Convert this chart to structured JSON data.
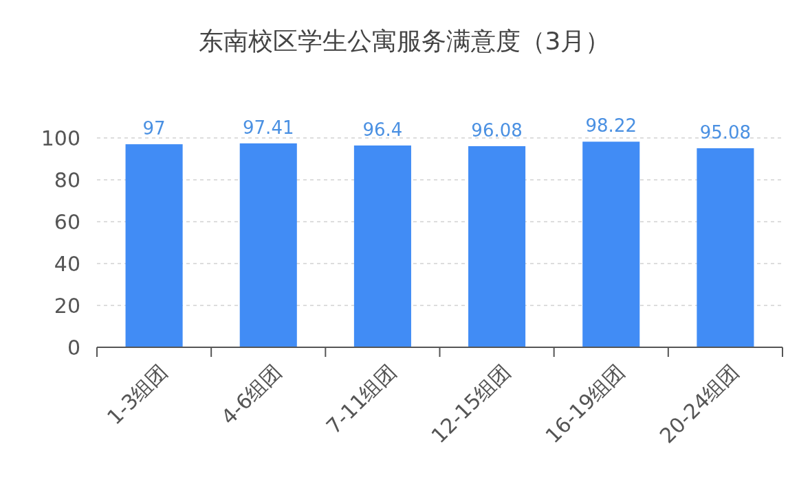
{
  "chart_data": {
    "type": "bar",
    "title": "东南校区学生公寓服务满意度（3月）",
    "categories": [
      "1-3组团",
      "4-6组团",
      "7-11组团",
      "12-15组团",
      "16-19组团",
      "20-24组团"
    ],
    "values": [
      97,
      97.41,
      96.4,
      96.08,
      98.22,
      95.08
    ],
    "color": "#418cf5",
    "ylim": [
      0,
      100
    ],
    "yticks": [
      0,
      20,
      40,
      60,
      80,
      100
    ],
    "grid": "y",
    "data_labels": true
  }
}
